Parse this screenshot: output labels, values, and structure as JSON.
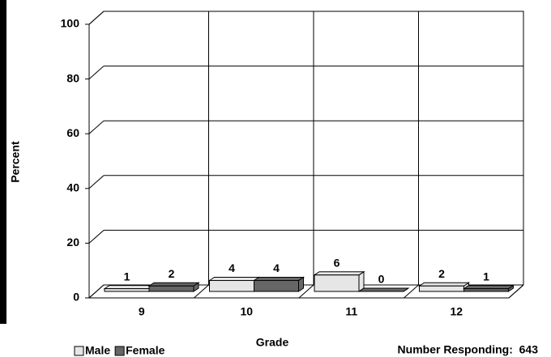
{
  "chart_data": {
    "type": "bar3d",
    "categories": [
      "9",
      "10",
      "11",
      "12"
    ],
    "series": [
      {
        "name": "Male",
        "color": "#e6e6e6",
        "values": [
          1,
          4,
          6,
          2
        ]
      },
      {
        "name": "Female",
        "color": "#666666",
        "values": [
          2,
          4,
          0,
          1
        ]
      }
    ],
    "ylim": [
      0,
      100
    ],
    "yticks": [
      0,
      20,
      40,
      60,
      80,
      100
    ],
    "grid": true,
    "x_label": "Grade",
    "y_label": "Percent",
    "annotation": "Number Responding:  643",
    "legend": "bottom-left"
  }
}
